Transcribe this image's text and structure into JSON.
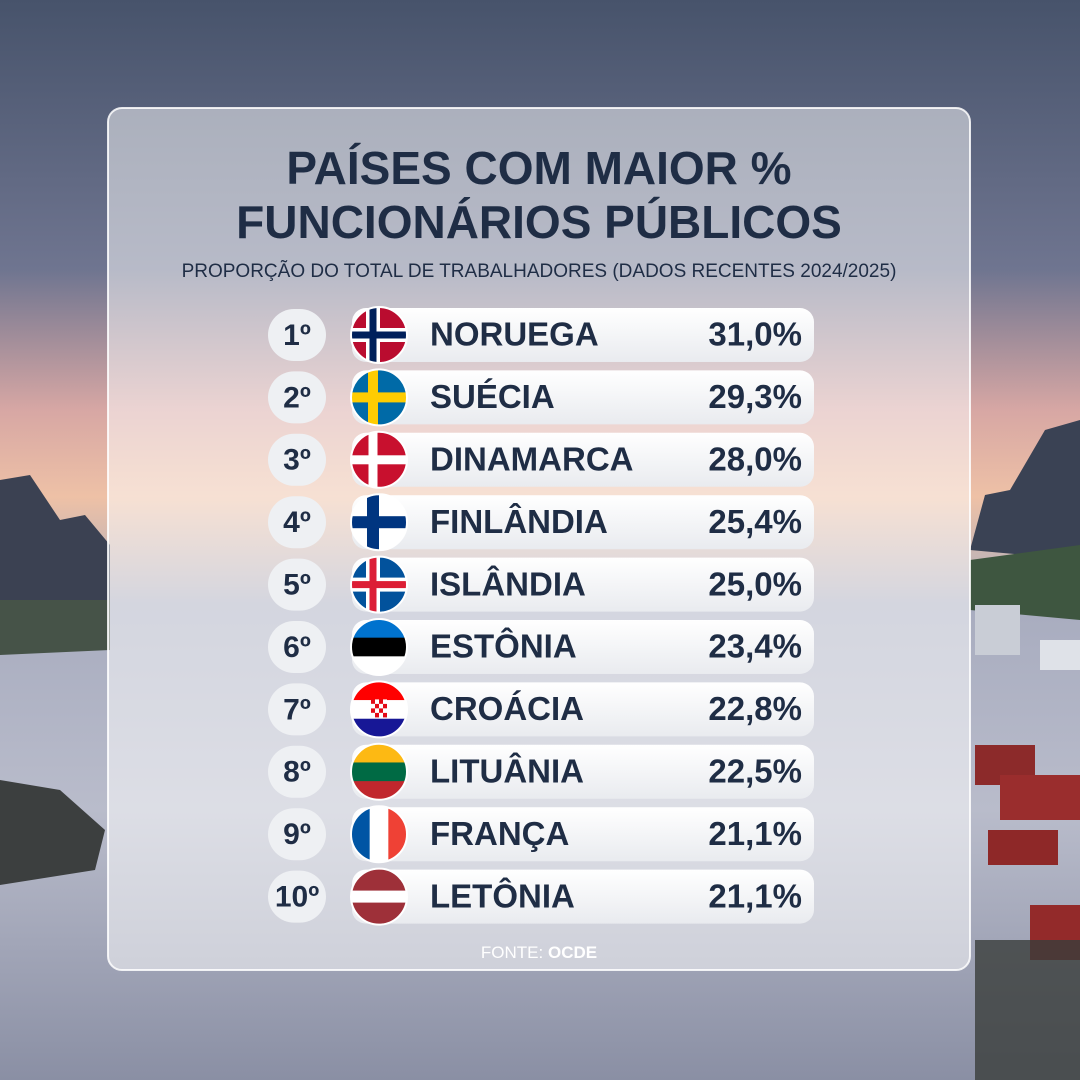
{
  "header": {
    "title_line1": "PAÍSES COM MAIOR %",
    "title_line2": "FUNCIONÁRIOS PÚBLICOS",
    "subtitle": "PROPORÇÃO DO TOTAL DE TRABALHADORES (DADOS RECENTES 2024/2025)"
  },
  "table": {
    "rows": [
      [
        "1º",
        "NORUEGA",
        "31,0%"
      ],
      [
        "2º",
        "SUÉCIA",
        "29,3%"
      ],
      [
        "3º",
        "DINAMARCA",
        "28,0%"
      ],
      [
        "4º",
        "FINLÂNDIA",
        "25,4%"
      ],
      [
        "5º",
        "ISLÂNDIA",
        "25,0%"
      ],
      [
        "6º",
        "ESTÔNIA",
        "23,4%"
      ],
      [
        "7º",
        "CROÁCIA",
        "22,8%"
      ],
      [
        "8º",
        "LITUÂNIA",
        "22,5%"
      ],
      [
        "9º",
        "FRANÇA",
        "21,1%"
      ],
      [
        "10º",
        "LETÔNIA",
        "21,1%"
      ]
    ]
  },
  "footer": {
    "label": "FONTE:",
    "name": "OCDE"
  }
}
